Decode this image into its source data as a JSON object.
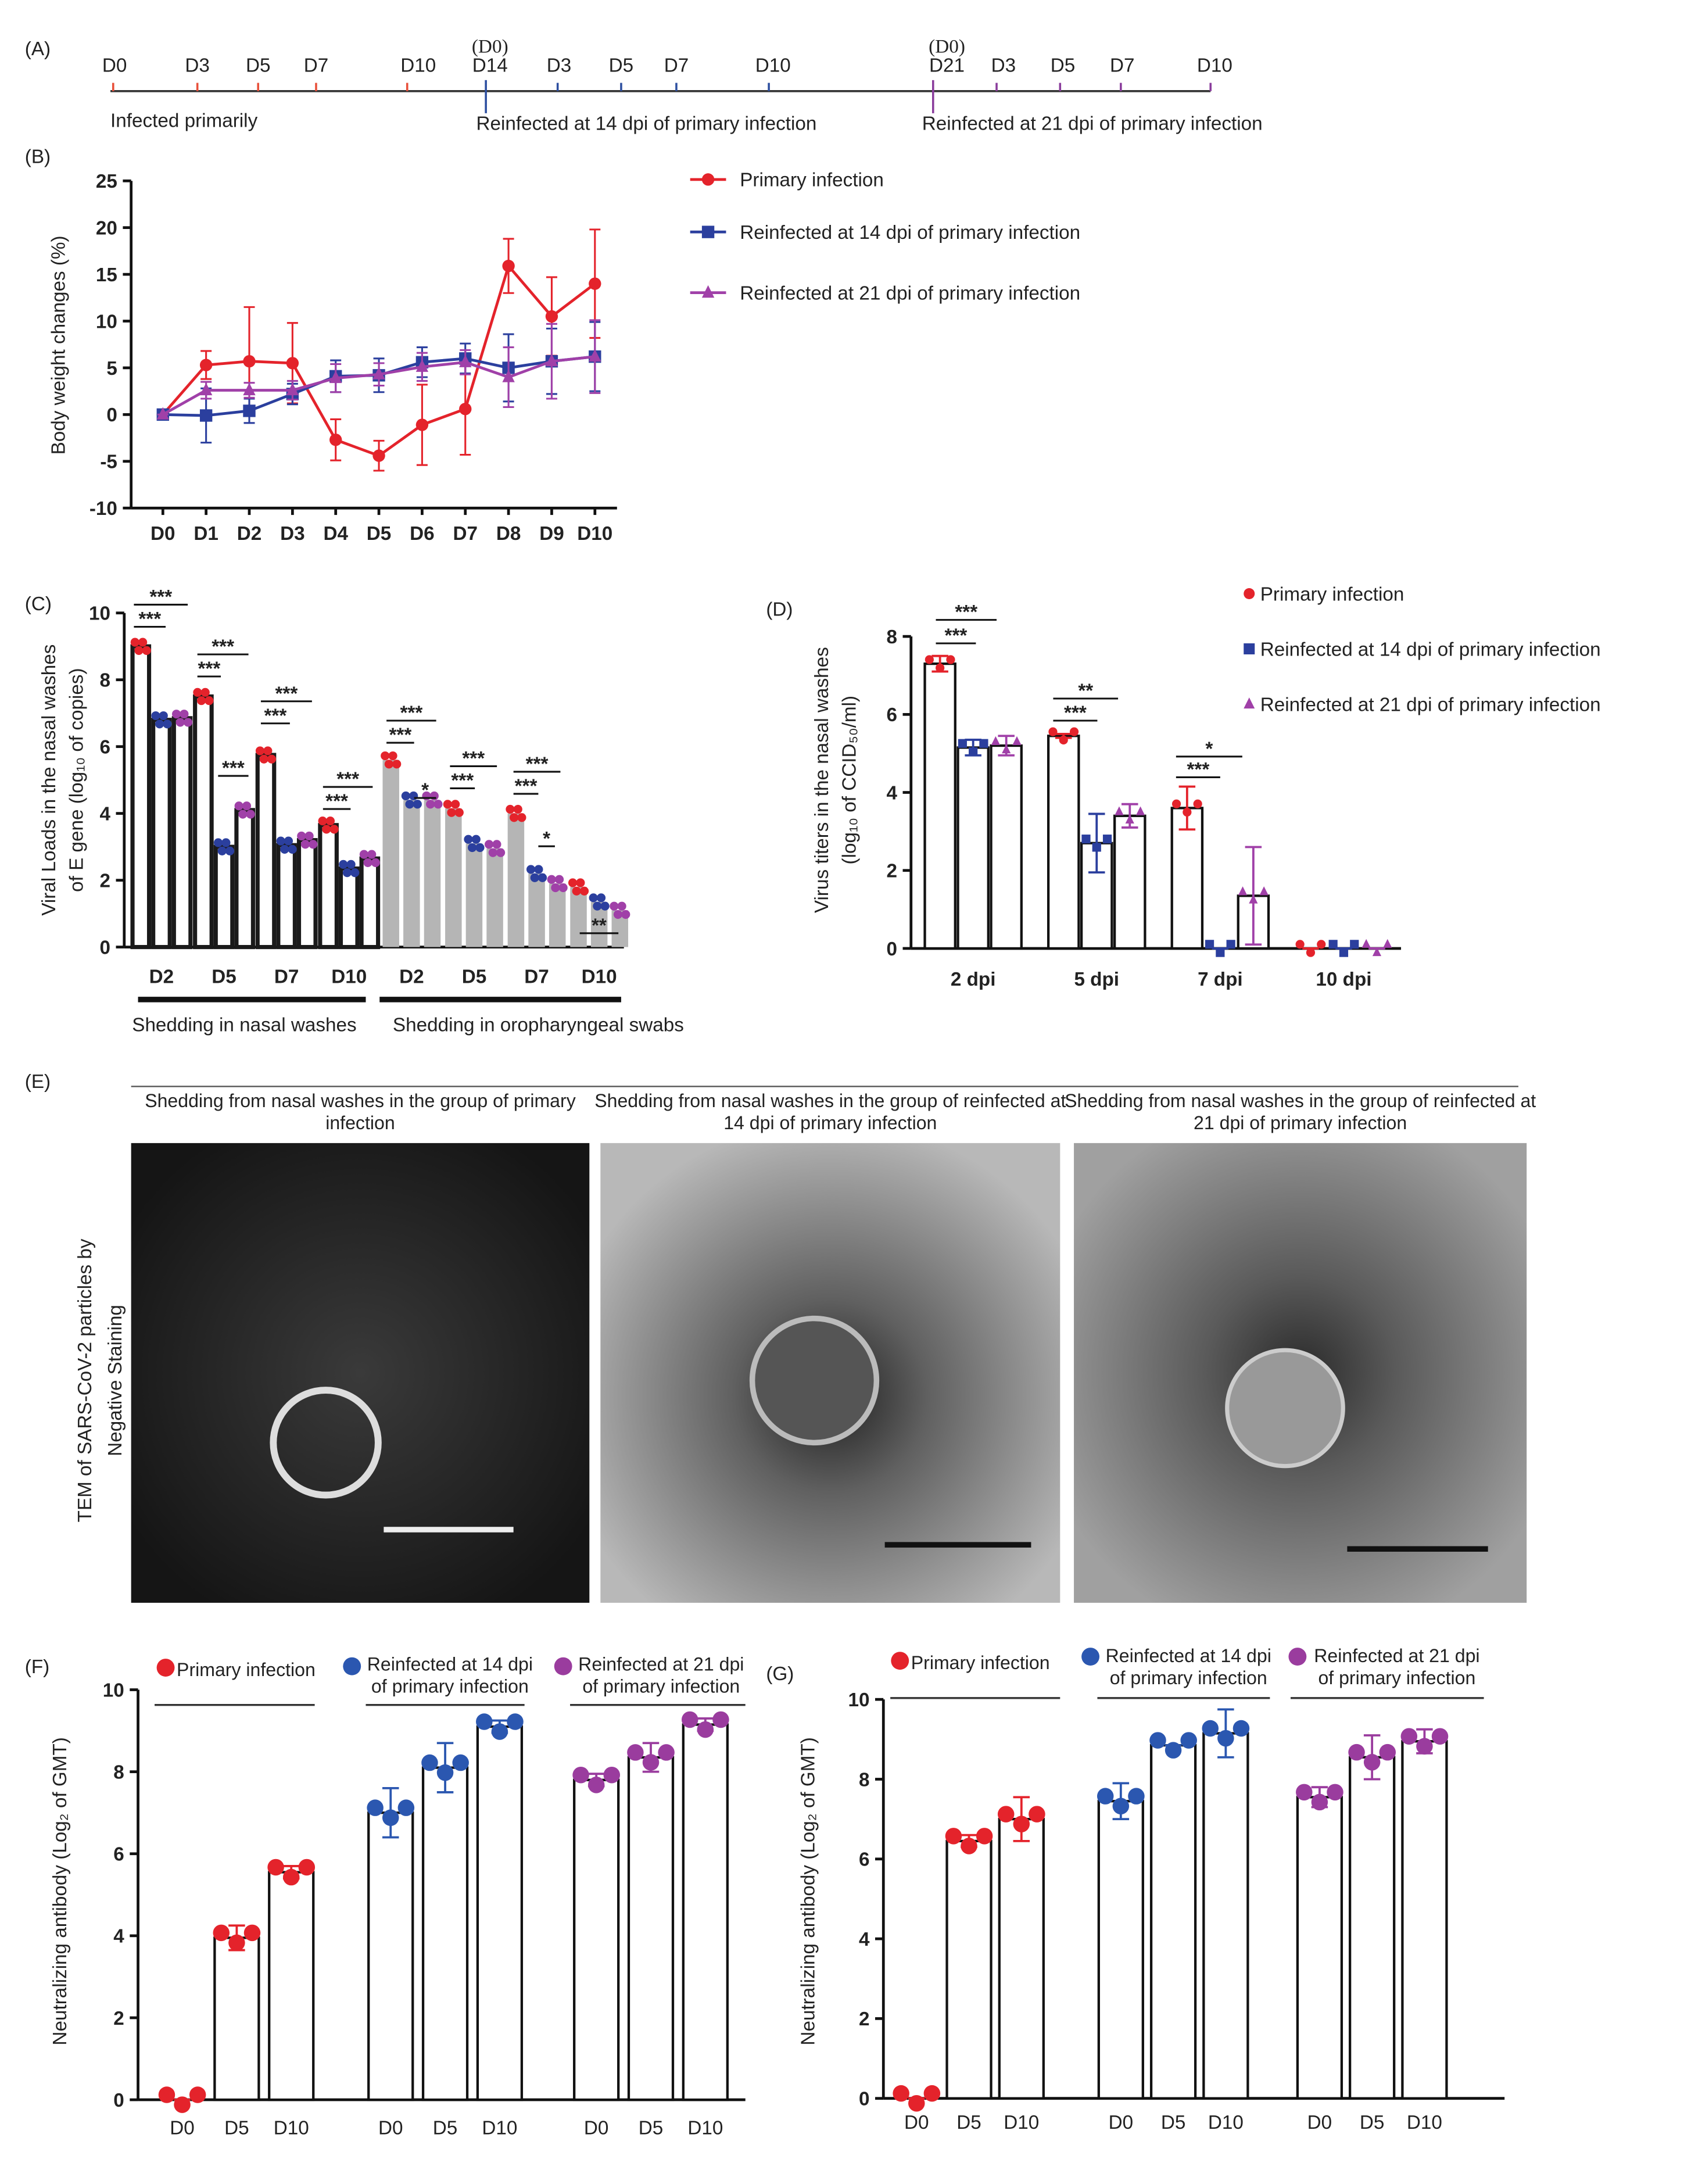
{
  "timeline": {
    "panel": "(A)",
    "days": [
      {
        "label": "D0",
        "color": "#e8503a"
      },
      {
        "label": "D3",
        "color": "#e8503a"
      },
      {
        "label": "D5",
        "color": "#e8503a"
      },
      {
        "label": "D7",
        "color": "#e8503a"
      },
      {
        "label": "D10",
        "color": "#e8503a"
      },
      {
        "label": "D14",
        "color": "#e8503a"
      },
      {
        "label": "D3",
        "color": "#2d4fa0"
      },
      {
        "label": "D5",
        "color": "#2d4fa0"
      },
      {
        "label": "D7",
        "color": "#2d4fa0"
      },
      {
        "label": "D10",
        "color": "#2d4fa0"
      },
      {
        "label": "D21",
        "color": "#e8503a"
      },
      {
        "label": "D3",
        "color": "#8a3c9c"
      },
      {
        "label": "D5",
        "color": "#8a3c9c"
      },
      {
        "label": "D7",
        "color": "#8a3c9c"
      },
      {
        "label": "D10",
        "color": "#8a3c9c"
      }
    ],
    "reinfection_marks": [
      {
        "label": "(D0)",
        "color": "#2d4fa0"
      },
      {
        "label": "(D0)",
        "color": "#8a3c9c"
      }
    ],
    "notes": [
      {
        "text": "Infected primarily",
        "color": "#e8503a"
      },
      {
        "text": "Reinfected at 14 dpi of primary infection",
        "color": "#2d4fa0"
      },
      {
        "text": "Reinfected at 21 dpi of primary infection",
        "color": "#8a3c9c"
      }
    ]
  },
  "tem": {
    "panel": "(E)",
    "ylabel": [
      "TEM of SARS-CoV-2 particles by",
      "Negative Staining"
    ],
    "captions": [
      "Shedding from nasal washes in the group of primary infection",
      "Shedding from nasal washes in the group of reinfected at 14 dpi of primary infection",
      "Shedding from nasal washes in the group of reinfected at 21 dpi of primary infection"
    ]
  },
  "chart_data": [
    {
      "type": "line",
      "panel": "(B)",
      "ylabel": "Body weight changes (%)",
      "categories": [
        "D0",
        "D1",
        "D2",
        "D3",
        "D4",
        "D5",
        "D6",
        "D7",
        "D8",
        "D9",
        "D10"
      ],
      "ylim": [
        -10,
        25
      ],
      "yticks": [
        -10,
        -5,
        0,
        5,
        10,
        15,
        20,
        25
      ],
      "series": [
        {
          "name": "Primary infection",
          "color": "#e4232b",
          "marker": "circle",
          "values": [
            0,
            5.3,
            5.7,
            5.5,
            -2.7,
            -4.4,
            -1.1,
            0.6,
            15.9,
            10.5,
            14
          ],
          "errors": [
            0,
            1.5,
            5.8,
            4.3,
            2.2,
            1.6,
            4.3,
            4.9,
            2.9,
            4.2,
            5.8
          ]
        },
        {
          "name": "Reinfected at 14 dpi of primary infection",
          "color": "#2b3f9e",
          "marker": "square",
          "values": [
            0,
            -0.1,
            0.4,
            2.2,
            4.1,
            4.2,
            5.6,
            6.0,
            5.0,
            5.7,
            6.2
          ],
          "errors": [
            0,
            2.9,
            1.3,
            1.1,
            1.7,
            1.8,
            1.6,
            1.6,
            3.6,
            3.5,
            3.7
          ]
        },
        {
          "name": "Reinfected at 21 dpi of primary infection",
          "color": "#a040a8",
          "marker": "triangle",
          "values": [
            0,
            2.6,
            2.6,
            2.6,
            3.9,
            4.3,
            5.1,
            5.6,
            4.0,
            5.7,
            6.2
          ],
          "errors": [
            0,
            0.9,
            0.8,
            1.0,
            1.5,
            1.2,
            1.5,
            1.3,
            3.2,
            4.0,
            3.9
          ]
        }
      ]
    },
    {
      "type": "bar",
      "panel": "(C)",
      "ylabel": [
        "Viral Loads in the nasal washes",
        "of E gene (log₁₀ of copies)"
      ],
      "categories": [
        "D2",
        "D5",
        "D7",
        "D10",
        "D2",
        "D5",
        "D7",
        "D10"
      ],
      "bar_colors": [
        "#1a1a1a",
        "#1a1a1a",
        "#1a1a1a",
        "#1a1a1a",
        "#b5b5b5",
        "#b5b5b5",
        "#b5b5b5",
        "#b5b5b5"
      ],
      "group_labels": [
        "Shedding in nasal washes",
        "Shedding in oropharyngeal swabs"
      ],
      "ylim": [
        0,
        10
      ],
      "yticks": [
        0,
        2,
        4,
        6,
        8,
        10
      ],
      "series": [
        {
          "color": "#e4232b",
          "values": [
            9.0,
            7.5,
            5.75,
            3.65,
            5.6,
            4.15,
            4.0,
            1.8
          ]
        },
        {
          "color": "#2b3f9e",
          "values": [
            6.8,
            3.0,
            3.05,
            2.35,
            4.4,
            3.1,
            2.2,
            1.35
          ]
        },
        {
          "color": "#a040a8",
          "values": [
            6.85,
            4.1,
            3.2,
            2.65,
            4.4,
            2.95,
            1.9,
            1.1
          ]
        }
      ],
      "annotations": [
        "***",
        "***",
        "***",
        "***",
        "***",
        "***",
        "***",
        "***",
        "***",
        "***",
        "***",
        "*",
        "***",
        "***",
        "***",
        "***",
        "*",
        "**"
      ]
    },
    {
      "type": "bar",
      "panel": "(D)",
      "ylabel": [
        "Virus titers in the nasal washes",
        "(log₁₀ of CCID₅₀/ml)"
      ],
      "categories": [
        "2 dpi",
        "5 dpi",
        "7 dpi",
        "10 dpi"
      ],
      "bar_color": "#ffffff",
      "ylim": [
        0,
        8
      ],
      "yticks": [
        0,
        2,
        4,
        6,
        8
      ],
      "series": [
        {
          "name": "Primary infection",
          "color": "#e4232b",
          "marker": "circle",
          "values": [
            7.3,
            5.45,
            3.6,
            0
          ],
          "errors": [
            0.2,
            0.05,
            0.55,
            0
          ]
        },
        {
          "name": "Reinfected at 14 dpi of primary infection",
          "color": "#2b3f9e",
          "marker": "square",
          "values": [
            5.15,
            2.7,
            0,
            0
          ],
          "errors": [
            0.2,
            0.75,
            0,
            0
          ]
        },
        {
          "name": "Reinfected at 21 dpi of primary infection",
          "color": "#a040a8",
          "marker": "triangle",
          "values": [
            5.2,
            3.4,
            1.35,
            0
          ],
          "errors": [
            0.25,
            0.3,
            1.25,
            0
          ]
        }
      ],
      "annotations": [
        "***",
        "***",
        "**",
        "***",
        "*",
        "***"
      ]
    },
    {
      "type": "bar",
      "panel": "(F)",
      "ylabel": "Neutralizing antibody (Log₂ of GMT)",
      "categories": [
        "D0",
        "D5",
        "D10"
      ],
      "bar_color": "#ffffff",
      "ylim": [
        0,
        10
      ],
      "yticks": [
        0,
        2,
        4,
        6,
        8,
        10
      ],
      "series": [
        {
          "name": "Primary infection",
          "color": "#e4232b",
          "values": [
            0,
            3.95,
            5.55
          ],
          "errors": [
            0,
            0.3,
            0.15
          ]
        },
        {
          "name": "Reinfected at 14 dpi of primary infection",
          "color": "#2b57b0",
          "values": [
            7.0,
            8.1,
            9.1
          ],
          "errors": [
            0.6,
            0.6,
            0.15
          ]
        },
        {
          "name": "Reinfected at 21 dpi of primary infection",
          "color": "#9a3c9e",
          "values": [
            7.8,
            8.35,
            9.15
          ],
          "errors": [
            0.15,
            0.35,
            0.15
          ]
        }
      ]
    },
    {
      "type": "bar",
      "panel": "(G)",
      "ylabel": "Neutralizing antibody (Log₂ of GMT)",
      "categories": [
        "D0",
        "D5",
        "D10"
      ],
      "bar_color": "#ffffff",
      "ylim": [
        0,
        10
      ],
      "yticks": [
        0,
        2,
        4,
        6,
        8,
        10
      ],
      "series": [
        {
          "name": "Primary infection",
          "color": "#e4232b",
          "values": [
            0,
            6.45,
            7.0
          ],
          "errors": [
            0,
            0.15,
            0.55
          ]
        },
        {
          "name": "Reinfected at 14 dpi of primary infection",
          "color": "#2b57b0",
          "values": [
            7.45,
            8.85,
            9.15
          ],
          "errors": [
            0.45,
            0,
            0.6
          ]
        },
        {
          "name": "Reinfected at 21 dpi of primary infection",
          "color": "#9a3c9e",
          "values": [
            7.55,
            8.55,
            8.95
          ],
          "errors": [
            0.25,
            0.55,
            0.3
          ]
        }
      ]
    }
  ]
}
